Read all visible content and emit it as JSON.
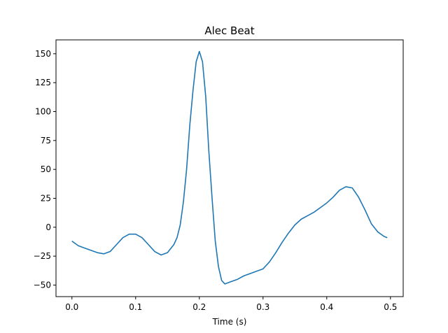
{
  "chart_data": {
    "type": "line",
    "title": "Alec Beat",
    "xlabel": "Time (s)",
    "ylabel": "",
    "xlim": [
      -0.025,
      0.52
    ],
    "ylim": [
      -60,
      162
    ],
    "xticks": [
      0.0,
      0.1,
      0.2,
      0.3,
      0.4,
      0.5
    ],
    "xtick_labels": [
      "0.0",
      "0.1",
      "0.2",
      "0.3",
      "0.4",
      "0.5"
    ],
    "yticks": [
      -50,
      -25,
      0,
      25,
      50,
      75,
      100,
      125,
      150
    ],
    "ytick_labels": [
      "−50",
      "−25",
      "0",
      "25",
      "50",
      "75",
      "100",
      "125",
      "150"
    ],
    "grid": false,
    "series": [
      {
        "color": "#1f77b4",
        "x": [
          0.0,
          0.01,
          0.02,
          0.03,
          0.04,
          0.05,
          0.06,
          0.07,
          0.08,
          0.09,
          0.1,
          0.11,
          0.12,
          0.13,
          0.14,
          0.15,
          0.16,
          0.165,
          0.17,
          0.175,
          0.18,
          0.185,
          0.19,
          0.195,
          0.2,
          0.205,
          0.21,
          0.215,
          0.22,
          0.225,
          0.23,
          0.235,
          0.24,
          0.25,
          0.26,
          0.27,
          0.28,
          0.29,
          0.3,
          0.31,
          0.32,
          0.33,
          0.34,
          0.35,
          0.36,
          0.37,
          0.38,
          0.39,
          0.4,
          0.41,
          0.42,
          0.43,
          0.44,
          0.45,
          0.46,
          0.47,
          0.48,
          0.49,
          0.495
        ],
        "y": [
          -12,
          -16,
          -18,
          -20,
          -22,
          -23,
          -21,
          -15,
          -9,
          -6,
          -6,
          -9,
          -15,
          -21,
          -24,
          -22,
          -15,
          -9,
          2,
          22,
          50,
          88,
          118,
          143,
          152,
          143,
          113,
          65,
          25,
          -12,
          -34,
          -46,
          -49,
          -47,
          -45,
          -42,
          -40,
          -38,
          -36,
          -30,
          -22,
          -13,
          -5,
          2,
          7,
          10,
          13,
          17,
          21,
          26,
          32,
          35,
          34,
          26,
          15,
          3,
          -4,
          -8,
          -9
        ]
      }
    ]
  }
}
